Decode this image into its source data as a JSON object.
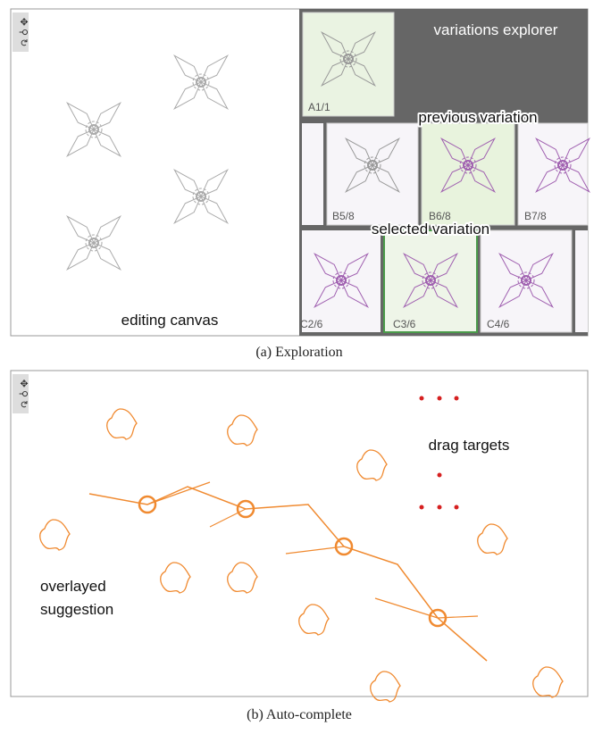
{
  "panel_a": {
    "explorer_label": "variations explorer",
    "previous_label": "previous variation",
    "selected_label": "selected variation",
    "canvas_label": "editing canvas",
    "thumbnails": [
      "A1/1",
      "B5/8",
      "B6/8",
      "B7/8",
      "C2/6",
      "C3/6",
      "C4/6"
    ],
    "caption": "(a) Exploration"
  },
  "panel_b": {
    "drag_label": "drag targets",
    "suggestion_label": [
      "overlayed",
      "suggestion"
    ],
    "caption": "(b) Auto-complete"
  }
}
